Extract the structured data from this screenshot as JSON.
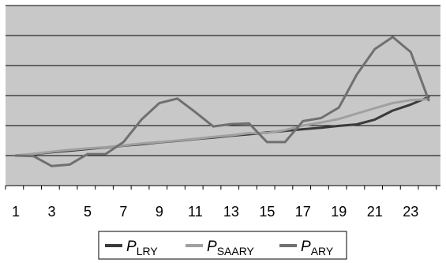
{
  "chart_data": {
    "type": "line",
    "x": [
      1,
      2,
      3,
      4,
      5,
      6,
      7,
      8,
      9,
      10,
      11,
      12,
      13,
      14,
      15,
      16,
      17,
      18,
      19,
      20,
      21,
      22,
      23,
      24
    ],
    "xtick_labels": [
      "1",
      "3",
      "5",
      "7",
      "9",
      "11",
      "13",
      "15",
      "17",
      "19",
      "21",
      "23"
    ],
    "xtick_values": [
      1,
      3,
      5,
      7,
      9,
      11,
      13,
      15,
      17,
      19,
      21,
      23
    ],
    "ylim": [
      0,
      6
    ],
    "y_gridlines": [
      1,
      2,
      3,
      4,
      5,
      6
    ],
    "grid": true,
    "legend_position": "bottom",
    "background_color": "#c8c8c8",
    "series": [
      {
        "name_base": "P",
        "name_sub": "LRY",
        "color": "#3a3a3a",
        "values": [
          1.0,
          1.05,
          1.11,
          1.16,
          1.22,
          1.27,
          1.33,
          1.38,
          1.44,
          1.49,
          1.55,
          1.6,
          1.66,
          1.71,
          1.77,
          1.82,
          1.88,
          1.93,
          1.99,
          2.04,
          2.2,
          2.5,
          2.7,
          2.95
        ]
      },
      {
        "name_base": "P",
        "name_sub": "SAARY",
        "color": "#a0a0a0",
        "values": [
          1.0,
          1.06,
          1.13,
          1.19,
          1.24,
          1.28,
          1.34,
          1.4,
          1.45,
          1.5,
          1.56,
          1.62,
          1.68,
          1.75,
          1.75,
          1.85,
          2.0,
          2.1,
          2.22,
          2.4,
          2.58,
          2.75,
          2.85,
          2.88
        ]
      },
      {
        "name_base": "P",
        "name_sub": "ARY",
        "color": "#707070",
        "values": [
          1.0,
          0.98,
          0.65,
          0.7,
          1.05,
          1.05,
          1.45,
          2.2,
          2.75,
          2.9,
          2.45,
          1.97,
          2.05,
          2.07,
          1.45,
          1.45,
          2.15,
          2.25,
          2.6,
          3.7,
          4.55,
          4.95,
          4.45,
          2.85
        ]
      }
    ]
  }
}
